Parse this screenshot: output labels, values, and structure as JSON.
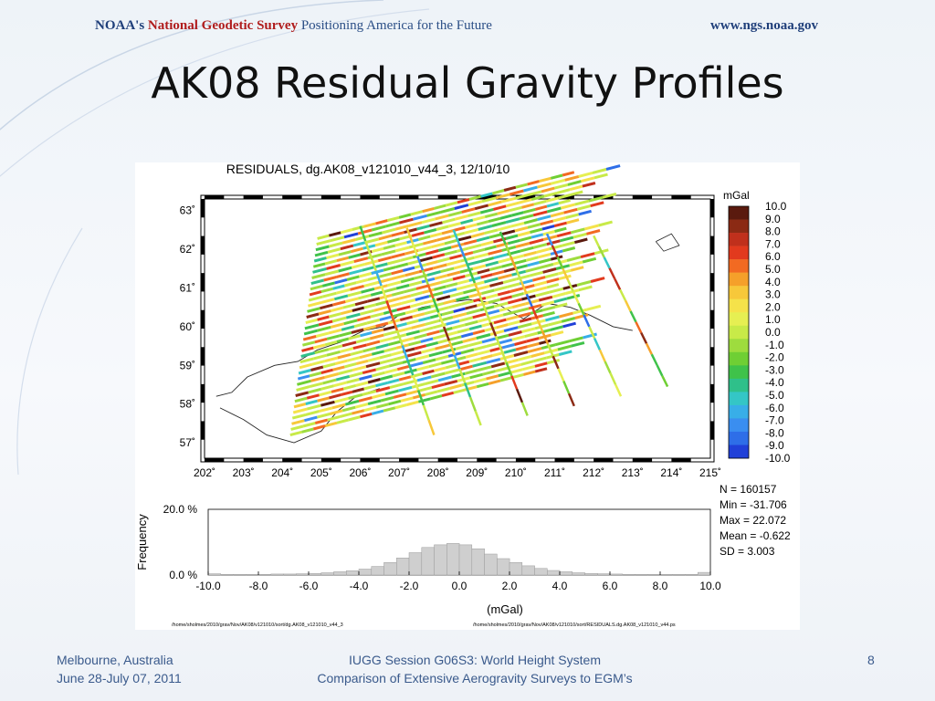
{
  "header": {
    "org": "NOAA's",
    "survey": "National Geodetic Survey",
    "tagline": "Positioning America for the Future",
    "url": "www.ngs.noaa.gov"
  },
  "slide": {
    "title": "AK08 Residual Gravity Profiles",
    "page_number": "8"
  },
  "footer": {
    "left_line1": "Melbourne, Australia",
    "left_line2": "June 28-July 07, 2011",
    "mid_line1": "IUGG Session G06S3: World Height System",
    "mid_line2": "Comparison of Extensive Aerogravity Surveys to EGM’s"
  },
  "colors": {
    "scale": [
      "#5a1a0e",
      "#8b2a14",
      "#c0301c",
      "#e23a1e",
      "#f26a22",
      "#f5a02a",
      "#f7c83a",
      "#f5e24a",
      "#e6ef52",
      "#c8ea48",
      "#9edc3e",
      "#6fcf34",
      "#3fc24a",
      "#2fc08a",
      "#34c6c6",
      "#38aee8",
      "#3a8ef0",
      "#2e6ee8",
      "#2040d8"
    ]
  },
  "chart_data": [
    {
      "type": "scatter",
      "title": "RESIDUALS, dg.AK08_v121010_v44_3, 12/10/10",
      "xlabel": "",
      "ylabel": "",
      "x_ticks": [
        "202˚",
        "203˚",
        "204˚",
        "205˚",
        "206˚",
        "207˚",
        "208˚",
        "209˚",
        "210˚",
        "211˚",
        "212˚",
        "213˚",
        "214˚",
        "215˚"
      ],
      "y_ticks": [
        "63˚",
        "62˚",
        "61˚",
        "60˚",
        "59˚",
        "58˚",
        "57˚"
      ],
      "xlim": [
        202,
        215
      ],
      "ylim": [
        56.6,
        63.3
      ],
      "colorbar": {
        "unit": "mGal",
        "labels": [
          "10.0",
          "9.0",
          "8.0",
          "7.0",
          "6.0",
          "5.0",
          "4.0",
          "3.0",
          "2.0",
          "1.0",
          "0.0",
          "-1.0",
          "-2.0",
          "-3.0",
          "-4.0",
          "-5.0",
          "-6.0",
          "-7.0",
          "-8.0",
          "-9.0",
          "-10.0"
        ]
      },
      "stats": {
        "n": "N =  160157",
        "min": "Min = -31.706",
        "max": "Max = 22.072",
        "mean": "Mean = -0.622",
        "sd": "SD = 3.003"
      }
    },
    {
      "type": "bar",
      "xlabel": "(mGal)",
      "ylabel": "Frequency",
      "y_ticks": [
        "20.0 %",
        "0.0 %"
      ],
      "ylim": [
        0,
        20
      ],
      "xlim": [
        -10,
        10
      ],
      "x_ticks": [
        "-10.0",
        "-8.0",
        "-6.0",
        "-4.0",
        "-2.0",
        "0.0",
        "2.0",
        "4.0",
        "6.0",
        "8.0",
        "10.0"
      ],
      "bin_width": 0.5,
      "bin_starts": [
        -10,
        -9.5,
        -9,
        -8.5,
        -8,
        -7.5,
        -7,
        -6.5,
        -6,
        -5.5,
        -5,
        -4.5,
        -4,
        -3.5,
        -3,
        -2.5,
        -2,
        -1.5,
        -1,
        -0.5,
        0,
        0.5,
        1,
        1.5,
        2,
        2.5,
        3,
        3.5,
        4,
        4.5,
        5,
        5.5,
        6,
        6.5,
        7,
        7.5,
        8,
        8.5,
        9,
        9.5
      ],
      "values": [
        0.4,
        0.2,
        0.2,
        0.2,
        0.2,
        0.3,
        0.3,
        0.4,
        0.5,
        0.7,
        1.0,
        1.3,
        1.8,
        2.6,
        3.8,
        5.2,
        6.8,
        8.4,
        9.2,
        9.6,
        9.2,
        8.0,
        6.4,
        5.0,
        3.8,
        2.8,
        2.0,
        1.4,
        1.0,
        0.7,
        0.5,
        0.4,
        0.3,
        0.2,
        0.2,
        0.2,
        0.2,
        0.2,
        0.2,
        0.8
      ]
    }
  ],
  "file_paths": {
    "left": "/home/sholmes/2010/grav/Nov/AK08/v121010/sort/dg.AK08_v121010_v44_3",
    "right": "/home/sholmes/2010/grav/Nov/AK08/v121010/sort/RESIDUALS.dg.AK08_v121010_v44.ps"
  }
}
